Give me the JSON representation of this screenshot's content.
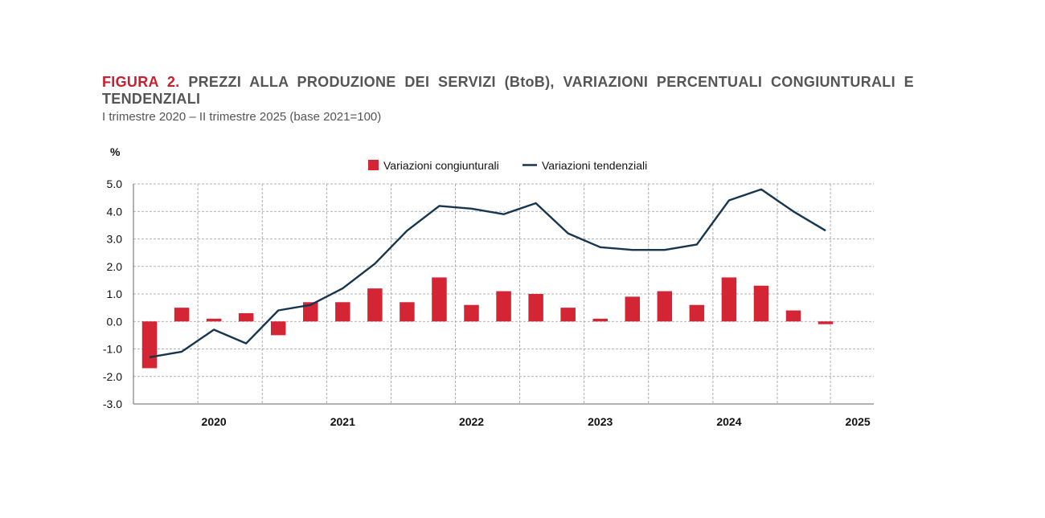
{
  "header": {
    "figure_label": "FIGURA 2.",
    "title": "PREZZI ALLA PRODUZIONE DEI SERVIZI (BtoB), VARIAZIONI PERCENTUALI CONGIUNTURALI E TENDENZIALI",
    "subtitle": "I trimestre 2020 – II trimestre 2025 (base 2021=100)"
  },
  "colors": {
    "bars": "#d42535",
    "line": "#16354f",
    "grid": "#9a9a9a",
    "axis": "#666666"
  },
  "chart_data": {
    "type": "bar+line",
    "unit_label": "%",
    "ylim": [
      -3.0,
      5.0
    ],
    "yticks": [
      "5.0",
      "4.0",
      "3.0",
      "2.0",
      "1.0",
      "0.0",
      "-1.0",
      "-2.0",
      "-3.0"
    ],
    "year_labels": [
      "2020",
      "2021",
      "2022",
      "2023",
      "2024",
      "2025"
    ],
    "quarters": [
      "2020-I",
      "2020-II",
      "2020-III",
      "2020-IV",
      "2021-I",
      "2021-II",
      "2021-III",
      "2021-IV",
      "2022-I",
      "2022-II",
      "2022-III",
      "2022-IV",
      "2023-I",
      "2023-II",
      "2023-III",
      "2023-IV",
      "2024-I",
      "2024-II",
      "2024-III",
      "2024-IV",
      "2025-I",
      "2025-II"
    ],
    "legend": [
      "Variazioni congiunturali",
      "Variazioni tendenziali"
    ],
    "series": [
      {
        "name": "Variazioni congiunturali",
        "kind": "bar",
        "values": [
          -1.7,
          0.5,
          0.1,
          0.3,
          -0.5,
          0.7,
          0.7,
          1.2,
          0.7,
          1.6,
          0.6,
          1.1,
          1.0,
          0.5,
          0.1,
          0.9,
          1.1,
          0.6,
          1.6,
          1.3,
          0.4,
          -0.1
        ]
      },
      {
        "name": "Variazioni tendenziali",
        "kind": "line",
        "values": [
          -1.3,
          -1.1,
          -0.3,
          -0.8,
          0.4,
          0.6,
          1.2,
          2.1,
          3.3,
          4.2,
          4.1,
          3.9,
          4.3,
          3.2,
          2.7,
          2.6,
          2.6,
          2.8,
          4.4,
          4.8,
          4.0,
          3.3
        ]
      }
    ]
  }
}
